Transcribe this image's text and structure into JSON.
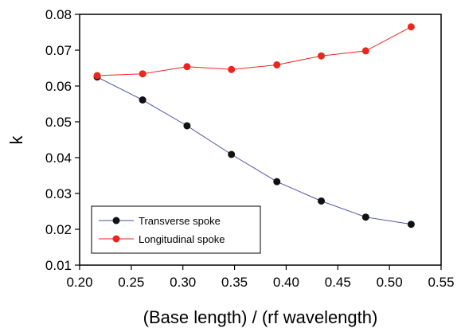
{
  "chart_data": {
    "type": "line",
    "xlabel": "(Base length) / (rf wavelength)",
    "ylabel": "k",
    "xlim": [
      0.2,
      0.55
    ],
    "ylim": [
      0.01,
      0.08
    ],
    "xticks": [
      "0.20",
      "0.25",
      "0.30",
      "0.35",
      "0.40",
      "0.45",
      "0.50",
      "0.55"
    ],
    "yticks": [
      "0.01",
      "0.02",
      "0.03",
      "0.04",
      "0.05",
      "0.06",
      "0.07",
      "0.08"
    ],
    "grid": false,
    "legend_position": "bottom-left",
    "series": [
      {
        "name": "Transverse spoke",
        "line_color": "#4a4fa8",
        "marker_color": "#111111",
        "x": [
          0.217,
          0.261,
          0.304,
          0.347,
          0.391,
          0.434,
          0.477,
          0.521
        ],
        "y": [
          0.0625,
          0.0561,
          0.0489,
          0.0409,
          0.0333,
          0.0279,
          0.0234,
          0.0214
        ]
      },
      {
        "name": "Longitudinal spoke",
        "line_color": "#e8281e",
        "marker_color": "#e8281e",
        "x": [
          0.217,
          0.261,
          0.304,
          0.347,
          0.391,
          0.434,
          0.477,
          0.521
        ],
        "y": [
          0.0629,
          0.0634,
          0.0654,
          0.0646,
          0.0659,
          0.0684,
          0.0698,
          0.0765
        ]
      }
    ]
  }
}
